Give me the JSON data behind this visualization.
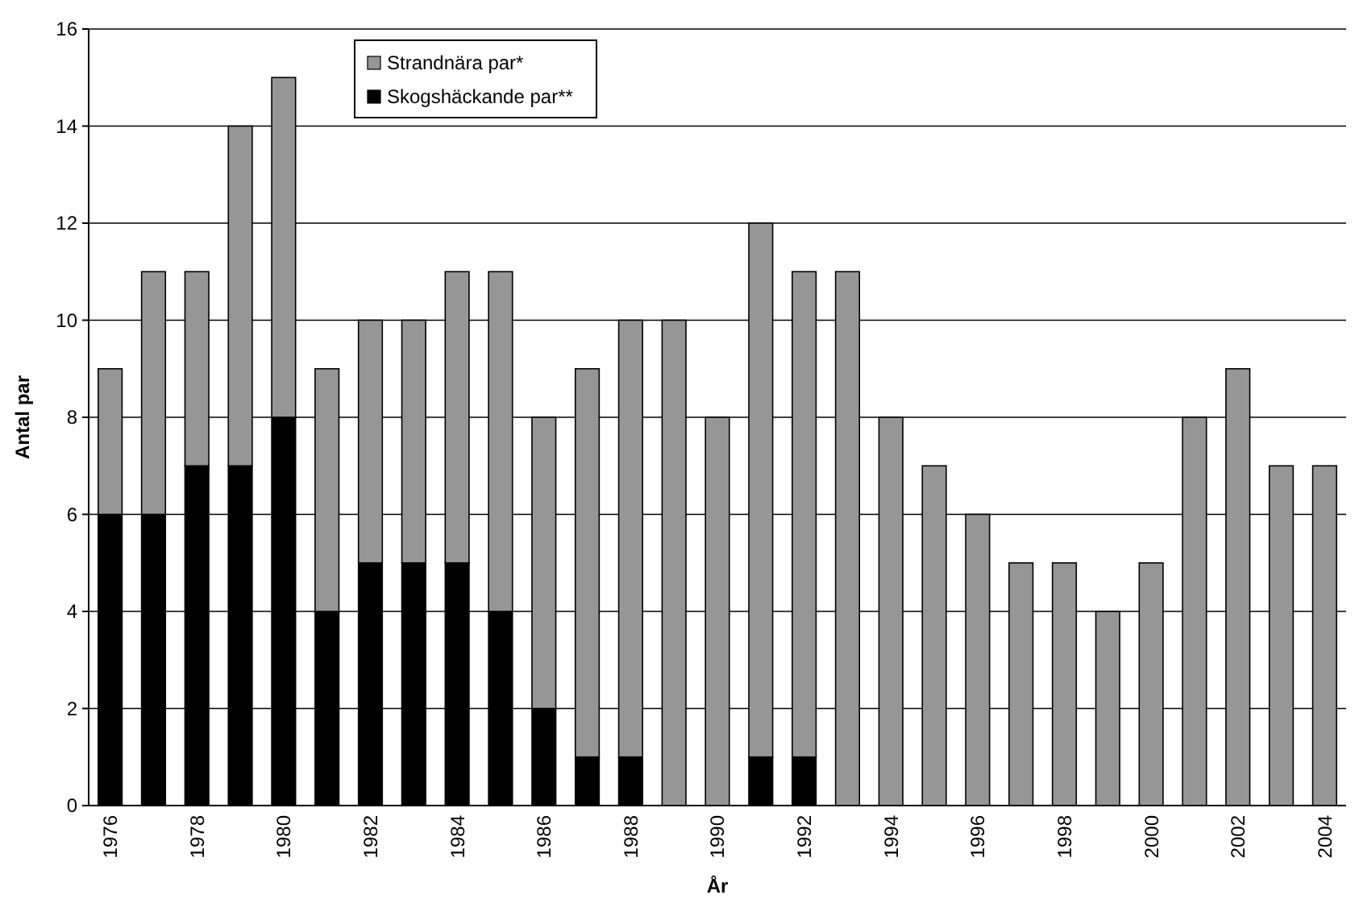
{
  "chart_data": {
    "type": "bar",
    "stacked": true,
    "xlabel": "År",
    "ylabel": "Antal par",
    "categories": [
      "1976",
      null,
      "1978",
      null,
      "1980",
      null,
      "1982",
      null,
      "1984",
      null,
      "1986",
      null,
      "1988",
      null,
      "1990",
      null,
      "1992",
      null,
      "1994",
      null,
      "1996",
      null,
      "1998",
      null,
      "2000",
      null,
      "2002",
      null,
      "2004"
    ],
    "series": [
      {
        "name": "Skogshäckande par**",
        "color": "#000000",
        "values": [
          6,
          6,
          7,
          7,
          8,
          4,
          5,
          5,
          5,
          4,
          2,
          1,
          1,
          0,
          0,
          1,
          1,
          0,
          0,
          0,
          0,
          0,
          0,
          0,
          0,
          0,
          0,
          0,
          0
        ]
      },
      {
        "name": "Strandnära par*",
        "color": "#969696",
        "values": [
          3,
          5,
          4,
          7,
          7,
          5,
          5,
          5,
          6,
          7,
          6,
          8,
          9,
          10,
          8,
          11,
          10,
          11,
          8,
          7,
          6,
          5,
          5,
          4,
          5,
          8,
          9,
          7,
          7
        ]
      }
    ],
    "ylim": [
      0,
      16
    ],
    "yticks": [
      0,
      2,
      4,
      6,
      8,
      10,
      12,
      14,
      16
    ],
    "grid": "y",
    "legend": "top left"
  }
}
